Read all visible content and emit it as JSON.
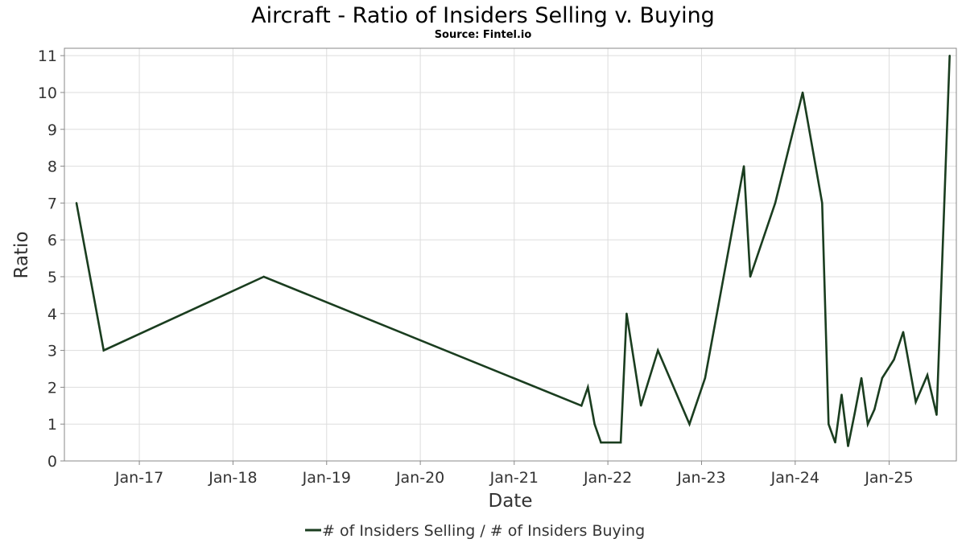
{
  "chart_data": {
    "type": "line",
    "title": "Aircraft - Ratio of Insiders Selling v. Buying",
    "subtitle": "Source: Fintel.io",
    "xlabel": "Date",
    "ylabel": "Ratio",
    "x_ticks": [
      "Jan-17",
      "Jan-18",
      "Jan-19",
      "Jan-20",
      "Jan-21",
      "Jan-22",
      "Jan-23",
      "Jan-24",
      "Jan-25"
    ],
    "y_ticks": [
      0,
      1,
      2,
      3,
      4,
      5,
      6,
      7,
      8,
      9,
      10,
      11
    ],
    "ylim": [
      0,
      11.2
    ],
    "xlim": [
      "2016-03-15",
      "2025-09-20"
    ],
    "grid": true,
    "legend_position": "bottom",
    "color": "#1a3d1f",
    "series": [
      {
        "name": "# of Insiders Selling / # of Insiders Buying",
        "x": [
          "2016-05-01",
          "2016-08-15",
          "2018-05-01",
          "2021-09-20",
          "2021-10-15",
          "2021-11-10",
          "2021-12-05",
          "2022-02-20",
          "2022-03-15",
          "2022-05-10",
          "2022-07-15",
          "2022-11-15",
          "2023-01-15",
          "2023-06-15",
          "2023-07-10",
          "2023-10-15",
          "2024-01-30",
          "2024-04-15",
          "2024-05-10",
          "2024-06-05",
          "2024-06-30",
          "2024-07-25",
          "2024-08-20",
          "2024-09-15",
          "2024-10-10",
          "2024-11-05",
          "2024-12-05",
          "2025-01-20",
          "2025-02-25",
          "2025-04-15",
          "2025-05-30",
          "2025-07-05",
          "2025-08-25"
        ],
        "values": [
          7,
          3,
          5,
          1.5,
          2,
          1,
          0.5,
          0.5,
          4,
          1.5,
          3,
          1,
          2.25,
          8,
          5,
          7,
          10,
          7,
          1,
          0.5,
          1.8,
          0.4,
          1.3,
          2.25,
          1,
          1.4,
          2.25,
          2.75,
          3.5,
          1.6,
          2.33,
          1.25,
          11
        ]
      }
    ]
  }
}
